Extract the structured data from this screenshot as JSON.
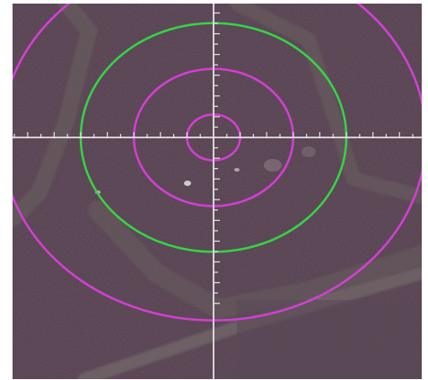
{
  "view": {
    "description_free": true,
    "colors": {
      "background": "#4e3a48",
      "background_dark": "#3e2f3b",
      "road": "#6f6a68",
      "road_edge": "#7d7773",
      "magenta_ring": "#d23fd4",
      "green_ring": "#35d447",
      "crosshair": "#e6e0e6"
    },
    "rings": [
      {
        "name": "ring-1",
        "color_key": "magenta_ring",
        "radius_units": 1
      },
      {
        "name": "ring-2",
        "color_key": "magenta_ring",
        "radius_units": 3
      },
      {
        "name": "ring-3",
        "color_key": "green_ring",
        "radius_units": 5
      },
      {
        "name": "ring-4",
        "color_key": "magenta_ring",
        "radius_units": 8
      }
    ],
    "crosshair": {
      "tick_spacing_units": 0.5,
      "major_every": 2
    }
  }
}
